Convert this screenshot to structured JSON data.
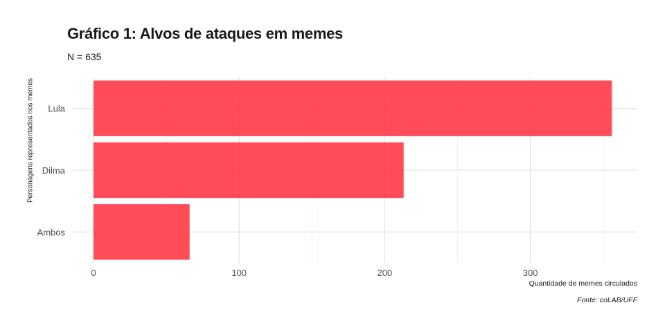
{
  "chart_data": {
    "type": "bar",
    "orientation": "horizontal",
    "title": "Gráfico 1: Alvos de ataques em memes",
    "subtitle": "N = 635",
    "categories": [
      "Lula",
      "Dilma",
      "Ambos"
    ],
    "values": [
      356,
      213,
      66
    ],
    "xlabel": "Quantidade de memes circulados",
    "ylabel": "Personagens representados nos memes",
    "caption": "Fonte: coLAB/UFF",
    "xlim": [
      0,
      373
    ],
    "xticks": [
      0,
      100,
      200,
      300
    ],
    "grid": true,
    "bar_color": "#ff3341"
  }
}
